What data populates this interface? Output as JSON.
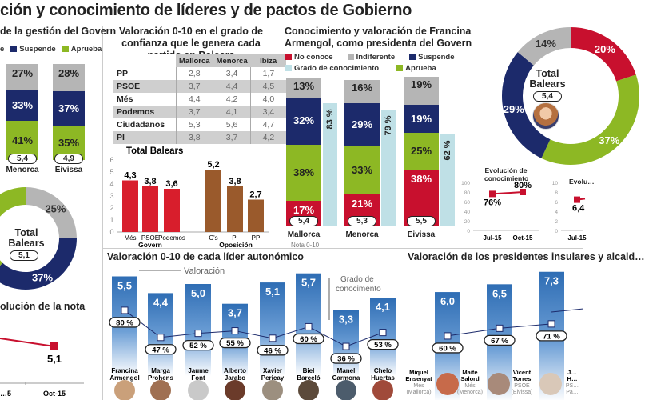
{
  "header": {
    "title": "ción y conocimiento de líderes y de pactos de Gobierno"
  },
  "colors": {
    "no_conoce": "#c8102e",
    "indiferente": "#b5b5b5",
    "suspende": "#1c2a6b",
    "aprueba": "#8db824",
    "conocimiento": "#bfe0e6",
    "govern": "#d81e2c",
    "oposicion": "#9a5a2c",
    "leader_bar": "#2e6db4"
  },
  "chart_data": [
    {
      "id": "gestion_govern",
      "type": "bar",
      "title": "de la gestión del Govern",
      "legend": [
        "e",
        "Suspende",
        "Aprueba"
      ],
      "categories": [
        "Menorca",
        "Eivissa"
      ],
      "series": [
        {
          "name": "Aprueba",
          "values": [
            41,
            35
          ]
        },
        {
          "name": "Suspende",
          "values": [
            33,
            37
          ]
        },
        {
          "name": "Indiferente",
          "values": [
            27,
            28
          ]
        }
      ],
      "nota": [
        "5,4",
        "4,9"
      ],
      "total": {
        "label": "Total Balears",
        "nota": "5,1",
        "slices": [
          {
            "name": "Indiferente",
            "value": 25,
            "label": "25%"
          },
          {
            "name": "Suspende",
            "value": 37,
            "label": "37%"
          },
          {
            "name": "Aprueba",
            "value": 38,
            "label": ""
          }
        ]
      }
    },
    {
      "id": "evolucion_nota",
      "type": "line",
      "title": "olución de la nota",
      "x": [
        "…5",
        "Oct-15"
      ],
      "values": [
        null,
        5.1
      ],
      "labels": [
        "",
        "5,1"
      ]
    },
    {
      "id": "confianza_tabla",
      "type": "table",
      "title": "Valoración 0-10 en el grado de confianza que le genera cada partido en Balears",
      "columns": [
        "Mallorca",
        "Menorca",
        "Ibiza"
      ],
      "rows": [
        {
          "party": "PP",
          "values": [
            "2,8",
            "3,4",
            "1,7"
          ]
        },
        {
          "party": "PSOE",
          "values": [
            "3,7",
            "4,4",
            "4,5"
          ]
        },
        {
          "party": "Més",
          "values": [
            "4,4",
            "4,2",
            "4,0"
          ]
        },
        {
          "party": "Podemos",
          "values": [
            "3,7",
            "4,1",
            "3,4"
          ]
        },
        {
          "party": "Ciudadanos",
          "values": [
            "5,3",
            "5,6",
            "4,7"
          ]
        },
        {
          "party": "PI",
          "values": [
            "3,8",
            "3,7",
            "4,2"
          ]
        }
      ]
    },
    {
      "id": "confianza_total",
      "type": "bar",
      "title": "Total Balears",
      "categories": [
        "Més",
        "PSOE",
        "Podemos",
        "C's",
        "PI",
        "PP"
      ],
      "values": [
        4.3,
        3.8,
        3.6,
        5.2,
        3.8,
        2.7
      ],
      "labels": [
        "4,3",
        "3,8",
        "3,6",
        "5,2",
        "3,8",
        "2,7"
      ],
      "groups": [
        {
          "name": "Govern",
          "members": [
            "Més",
            "PSOE",
            "Podemos"
          ]
        },
        {
          "name": "Oposición",
          "members": [
            "C's",
            "PI",
            "PP"
          ]
        }
      ],
      "yticks": [
        0,
        1,
        2,
        3,
        4,
        5,
        6
      ],
      "ylim": [
        0,
        6
      ]
    },
    {
      "id": "armengol",
      "type": "bar",
      "title": "Conocimiento y valoración de Francina Armengol, como presidenta del Govern",
      "legend": [
        "No conoce",
        "Indiferente",
        "Suspende",
        "Grado de conocimiento",
        "Aprueba"
      ],
      "categories": [
        "Mallorca",
        "Menorca",
        "Eivissa"
      ],
      "series": [
        {
          "name": "No conoce",
          "values": [
            17,
            21,
            38
          ]
        },
        {
          "name": "Aprueba",
          "values": [
            38,
            33,
            25
          ]
        },
        {
          "name": "Suspende",
          "values": [
            32,
            29,
            19
          ]
        },
        {
          "name": "Indiferente",
          "values": [
            13,
            16,
            19
          ]
        }
      ],
      "conocimiento": [
        83,
        79,
        62
      ],
      "nota": [
        "5,4",
        "5,3",
        "5,5"
      ],
      "nota_label": "Nota 0-10",
      "total": {
        "label": "Total Balears",
        "nota": "5,4",
        "slices": [
          {
            "name": "No conoce",
            "value": 20,
            "label": "20%"
          },
          {
            "name": "Aprueba",
            "value": 37,
            "label": "37%"
          },
          {
            "name": "Suspende",
            "value": 29,
            "label": "29%"
          },
          {
            "name": "Indiferente",
            "value": 14,
            "label": "14%"
          }
        ]
      }
    },
    {
      "id": "evolucion_conocimiento",
      "type": "line",
      "title": "Evolución de conocimiento",
      "x": [
        "Jul-15",
        "Oct-15"
      ],
      "values": [
        76,
        80
      ],
      "labels": [
        "76%",
        "80%"
      ],
      "yticks": [
        0,
        20,
        40,
        60,
        80,
        100
      ],
      "ylim": [
        0,
        100
      ]
    },
    {
      "id": "evolucion_valoracion",
      "type": "line",
      "title": "Evolu…",
      "x": [
        "Jul-15"
      ],
      "values": [
        6.4
      ],
      "labels": [
        "6,4"
      ],
      "yticks": [
        0,
        2,
        4,
        6,
        8,
        10
      ],
      "ylim": [
        0,
        10
      ]
    },
    {
      "id": "lideres",
      "type": "bar",
      "title": "Valoración 0-10 de cada líder autonómico",
      "annotations": [
        "Valoración",
        "Grado de conocimento"
      ],
      "categories": [
        "Francina Armengol",
        "Marga Prohens",
        "Jaume Font",
        "Alberto Jarabo",
        "Xavier Pericay",
        "Biel Barceló",
        "Manel Carmona",
        "Chelo Huertas"
      ],
      "values": [
        5.5,
        4.4,
        5.0,
        3.7,
        5.1,
        5.7,
        3.3,
        4.1
      ],
      "labels": [
        "5,5",
        "4,4",
        "5,0",
        "3,7",
        "5,1",
        "5,7",
        "3,3",
        "4,1"
      ],
      "conocimiento": [
        80,
        47,
        52,
        55,
        46,
        60,
        36,
        53
      ],
      "conocimiento_labels": [
        "80 %",
        "47 %",
        "52 %",
        "55 %",
        "46 %",
        "60 %",
        "36 %",
        "53 %"
      ]
    },
    {
      "id": "presidentes_insulares",
      "type": "bar",
      "title": "Valoración de los presidentes insulares y alcald…",
      "categories": [
        "Miquel Ensenyat",
        "Maite Salord",
        "Vicent Torres",
        "J… H…"
      ],
      "subtitles": [
        [
          "Més",
          "(Mallorca)"
        ],
        [
          "Més",
          "(Menorca)"
        ],
        [
          "PSOE",
          "(Eivissa)"
        ],
        [
          "PS…",
          "Pa…"
        ]
      ],
      "values": [
        6.0,
        6.5,
        7.3
      ],
      "labels": [
        "6,0",
        "6,5",
        "7,3"
      ],
      "conocimiento": [
        60,
        67,
        71
      ],
      "conocimiento_labels": [
        "60 %",
        "67 %",
        "71 %"
      ]
    }
  ]
}
